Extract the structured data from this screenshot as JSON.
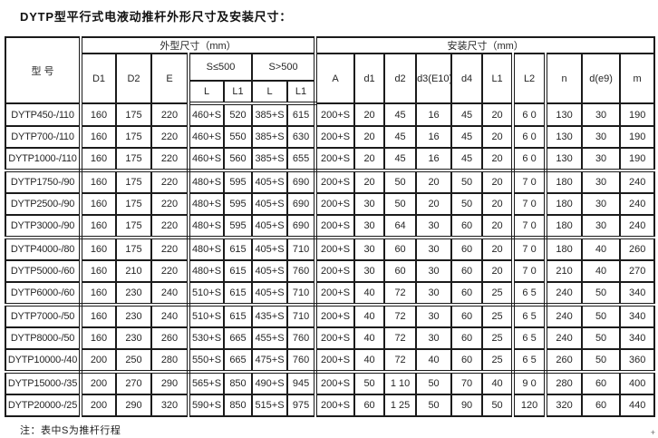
{
  "page": {
    "title": "DYTP型平行式电液动推杆外形尺寸及安装尺寸：",
    "footnote": "注：表中S为推杆行程",
    "corner_mark": "+"
  },
  "colors": {
    "border": "#1b1b1b",
    "text": "#262626",
    "background": "#ffffff"
  },
  "table": {
    "headers": {
      "model": "型 号",
      "outline_group": "外型尺寸（mm）",
      "install_group": "安装尺寸（mm）",
      "d1": "D1",
      "d2": "D2",
      "e": "E",
      "stroke_le_500": "S≤500",
      "stroke_gt_500": "S>500",
      "l_a": "L",
      "l1_a": "L1",
      "l_b": "L",
      "l1_b": "L1",
      "a": "A",
      "inst_d1": "d1",
      "inst_d2": "d2",
      "inst_d3": "d3(E10)",
      "inst_d4": "d4",
      "inst_l1": "L1",
      "inst_l2": "L2",
      "n": "n",
      "de9": "d(e9)",
      "m": "m"
    },
    "group_separator_after_rows": [
      2,
      5,
      8,
      11
    ],
    "double_border_value_cols": [
      2,
      6,
      12,
      13
    ],
    "rows": [
      {
        "model": "DYTP450-/110",
        "values": [
          "160",
          "175",
          "220",
          "460+S",
          "520",
          "385+S",
          "615",
          "200+S",
          "20",
          "45",
          "16",
          "45",
          "20",
          "6 0",
          "130",
          "30",
          "190"
        ]
      },
      {
        "model": "DYTP700-/110",
        "values": [
          "160",
          "175",
          "220",
          "460+S",
          "550",
          "385+S",
          "630",
          "200+S",
          "20",
          "45",
          "16",
          "45",
          "20",
          "6 0",
          "130",
          "30",
          "190"
        ]
      },
      {
        "model": "DYTP1000-/110",
        "values": [
          "160",
          "175",
          "220",
          "460+S",
          "560",
          "385+S",
          "655",
          "200+S",
          "20",
          "45",
          "16",
          "45",
          "20",
          "6 0",
          "130",
          "30",
          "190"
        ]
      },
      {
        "model": "DYTP1750-/90",
        "values": [
          "160",
          "175",
          "220",
          "480+S",
          "595",
          "405+S",
          "690",
          "200+S",
          "20",
          "50",
          "20",
          "50",
          "20",
          "7 0",
          "180",
          "30",
          "240"
        ]
      },
      {
        "model": "DYTP2500-/90",
        "values": [
          "160",
          "175",
          "220",
          "480+S",
          "595",
          "405+S",
          "690",
          "200+S",
          "30",
          "50",
          "20",
          "50",
          "20",
          "7 0",
          "180",
          "30",
          "240"
        ]
      },
      {
        "model": "DYTP3000-/90",
        "values": [
          "160",
          "175",
          "220",
          "480+S",
          "595",
          "405+S",
          "690",
          "200+S",
          "30",
          "64",
          "30",
          "60",
          "20",
          "7 0",
          "180",
          "30",
          "240"
        ]
      },
      {
        "model": "DYTP4000-/80",
        "values": [
          "160",
          "175",
          "220",
          "480+S",
          "615",
          "405+S",
          "710",
          "200+S",
          "30",
          "60",
          "30",
          "60",
          "20",
          "7 0",
          "180",
          "40",
          "260"
        ]
      },
      {
        "model": "DYTP5000-/60",
        "values": [
          "160",
          "210",
          "220",
          "480+S",
          "615",
          "405+S",
          "760",
          "200+S",
          "30",
          "60",
          "30",
          "60",
          "20",
          "7 0",
          "210",
          "40",
          "270"
        ]
      },
      {
        "model": "DYTP6000-/60",
        "values": [
          "160",
          "230",
          "240",
          "510+S",
          "615",
          "405+S",
          "710",
          "200+S",
          "40",
          "72",
          "30",
          "60",
          "25",
          "6 5",
          "240",
          "50",
          "340"
        ]
      },
      {
        "model": "DYTP7000-/50",
        "values": [
          "160",
          "230",
          "240",
          "510+S",
          "615",
          "435+S",
          "710",
          "200+S",
          "40",
          "72",
          "30",
          "60",
          "25",
          "6 5",
          "240",
          "50",
          "340"
        ]
      },
      {
        "model": "DYTP8000-/50",
        "values": [
          "160",
          "230",
          "260",
          "530+S",
          "665",
          "455+S",
          "760",
          "200+S",
          "40",
          "72",
          "30",
          "60",
          "25",
          "6 5",
          "240",
          "50",
          "340"
        ]
      },
      {
        "model": "DYTP10000-/40",
        "values": [
          "200",
          "250",
          "280",
          "550+S",
          "665",
          "475+S",
          "760",
          "200+S",
          "40",
          "72",
          "40",
          "60",
          "25",
          "6 5",
          "260",
          "50",
          "360"
        ]
      },
      {
        "model": "DYTP15000-/35",
        "values": [
          "200",
          "270",
          "290",
          "565+S",
          "850",
          "490+S",
          "945",
          "200+S",
          "50",
          "1 10",
          "50",
          "70",
          "40",
          "9 0",
          "280",
          "60",
          "400"
        ]
      },
      {
        "model": "DYTP20000-/25",
        "values": [
          "200",
          "290",
          "320",
          "590+S",
          "850",
          "515+S",
          "975",
          "200+S",
          "60",
          "1 25",
          "50",
          "90",
          "50",
          "120",
          "320",
          "60",
          "440"
        ]
      }
    ]
  }
}
